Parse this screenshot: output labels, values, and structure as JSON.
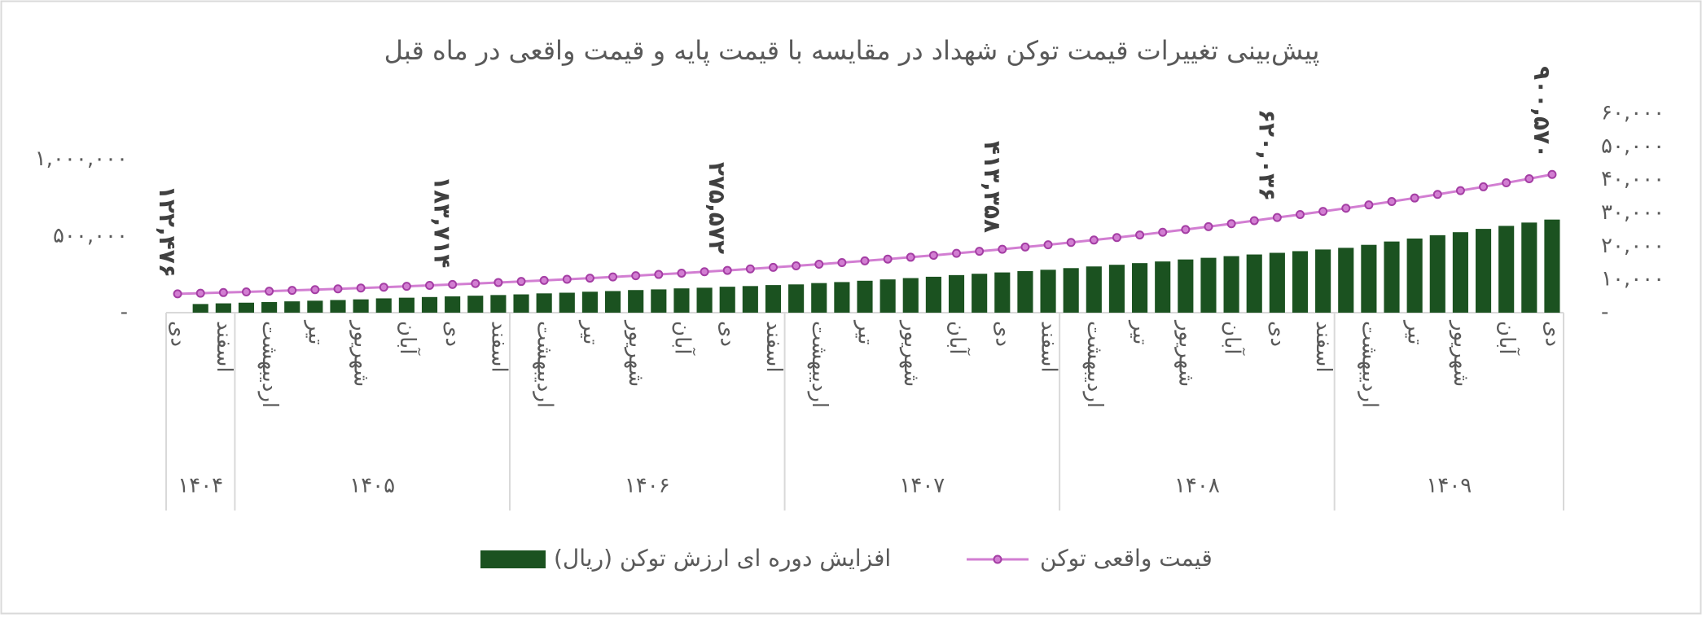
{
  "chart_data": {
    "type": "combo",
    "title": "پیش‌بینی تغییرات قیمت توکن شهداد در مقایسه با قیمت پایه و قیمت واقعی در ماه قبل",
    "categories": [
      "دی",
      null,
      "اسفند",
      null,
      "اردیبهشت",
      null,
      "تیر",
      null,
      "شهریور",
      null,
      "آبان",
      null,
      "دی",
      null,
      "اسفند",
      null,
      "اردیبهشت",
      null,
      "تیر",
      null,
      "شهریور",
      null,
      "آبان",
      null,
      "دی",
      null,
      "اسفند",
      null,
      "اردیبهشت",
      null,
      "تیر",
      null,
      "شهریور",
      null,
      "آبان",
      null,
      "دی",
      null,
      "اسفند",
      null,
      "اردیبهشت",
      null,
      "تیر",
      null,
      "شهریور",
      null,
      "آبان",
      null,
      "دی",
      null,
      "اسفند",
      null,
      "اردیبهشت",
      null,
      "تیر",
      null,
      "شهریور",
      null,
      "آبان",
      null,
      "دی"
    ],
    "x_groups": [
      {
        "label": "۱۴۰۴",
        "months": 3
      },
      {
        "label": "۱۴۰۵",
        "months": 12
      },
      {
        "label": "۱۴۰۶",
        "months": 12
      },
      {
        "label": "۱۴۰۷",
        "months": 12
      },
      {
        "label": "۱۴۰۸",
        "months": 12
      },
      {
        "label": "۱۴۰۹",
        "months": 10
      }
    ],
    "series": [
      {
        "name": "افزایش دوره ای ارزش توکن (ریال)",
        "type": "bar",
        "axis": "y2",
        "color": "#1b5220",
        "values": [
          null,
          2600,
          2800,
          3000,
          3200,
          3400,
          3600,
          3800,
          4000,
          4300,
          4500,
          4700,
          4900,
          5100,
          5300,
          5500,
          5800,
          6000,
          6300,
          6500,
          6800,
          7000,
          7300,
          7500,
          7800,
          8000,
          8300,
          8500,
          8900,
          9200,
          9600,
          10000,
          10400,
          10800,
          11300,
          11700,
          12100,
          12500,
          12900,
          13400,
          13900,
          14400,
          14900,
          15400,
          16000,
          16500,
          17000,
          17500,
          18000,
          18500,
          19000,
          19500,
          20400,
          21400,
          22300,
          23300,
          24200,
          25200,
          26100,
          27100,
          28000
        ]
      },
      {
        "name": "قیمت واقعی توکن",
        "type": "line",
        "axis": "y",
        "color": "#d27ed2",
        "marker_color": "#a43ea4",
        "values": [
          122476,
          126700,
          131000,
          135500,
          140200,
          145000,
          150000,
          155200,
          160500,
          166000,
          171700,
          177600,
          183714,
          190000,
          196600,
          203300,
          210300,
          217500,
          225000,
          232800,
          240800,
          249100,
          257600,
          266500,
          275572,
          285100,
          294900,
          305000,
          315500,
          326400,
          337600,
          349200,
          361200,
          373700,
          386500,
          399800,
          413358,
          427600,
          442300,
          457500,
          473300,
          489600,
          506400,
          523900,
          541900,
          560500,
          579800,
          599800,
          620036,
          639600,
          659800,
          680600,
          702100,
          724300,
          747200,
          770800,
          795100,
          820200,
          846100,
          872900,
          900570
        ],
        "value_labels": [
          "۱۲۲,۴۷۶",
          null,
          null,
          null,
          null,
          null,
          null,
          null,
          null,
          null,
          null,
          null,
          "۱۸۳,۷۱۴",
          null,
          null,
          null,
          null,
          null,
          null,
          null,
          null,
          null,
          null,
          null,
          "۲۷۵,۵۷۲",
          null,
          null,
          null,
          null,
          null,
          null,
          null,
          null,
          null,
          null,
          null,
          "۴۱۳,۳۵۸",
          null,
          null,
          null,
          null,
          null,
          null,
          null,
          null,
          null,
          null,
          null,
          "۶۲۰,۰۳۶",
          null,
          null,
          null,
          null,
          null,
          null,
          null,
          null,
          null,
          null,
          null,
          "۹۰۰,۵۷۰"
        ]
      }
    ],
    "ylim": [
      0,
      1300000
    ],
    "yticks": [
      {
        "value": 0,
        "label": "-"
      },
      {
        "value": 500000,
        "label": "۵۰۰,۰۰۰"
      },
      {
        "value": 1000000,
        "label": "۱,۰۰۰,۰۰۰"
      }
    ],
    "y2lim": [
      0,
      60000
    ],
    "y2ticks": [
      {
        "value": 0,
        "label": "-"
      },
      {
        "value": 10000,
        "label": "۱۰,۰۰۰"
      },
      {
        "value": 20000,
        "label": "۲۰,۰۰۰"
      },
      {
        "value": 30000,
        "label": "۳۰,۰۰۰"
      },
      {
        "value": 40000,
        "label": "۴۰,۰۰۰"
      },
      {
        "value": 50000,
        "label": "۵۰,۰۰۰"
      },
      {
        "value": 60000,
        "label": "۶۰,۰۰۰"
      }
    ],
    "grid": false,
    "legend": "bottom"
  }
}
